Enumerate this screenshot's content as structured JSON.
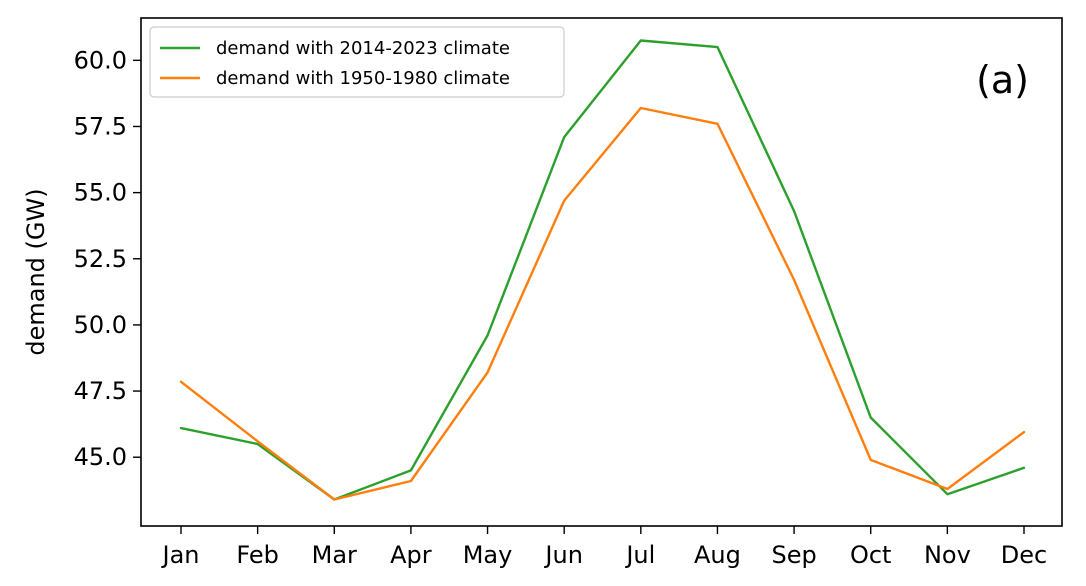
{
  "chart_data": {
    "type": "line",
    "ylabel": "demand (GW)",
    "panel_label": "(a)",
    "categories": [
      "Jan",
      "Feb",
      "Mar",
      "Apr",
      "May",
      "Jun",
      "Jul",
      "Aug",
      "Sep",
      "Oct",
      "Nov",
      "Dec"
    ],
    "yticks": [
      "45.0",
      "47.5",
      "50.0",
      "52.5",
      "55.0",
      "57.5",
      "60.0"
    ],
    "ylim": [
      42.4,
      61.6
    ],
    "grid": false,
    "legend_position": "top-left",
    "series": [
      {
        "name": "demand with 2014-2023 climate",
        "color": "#2ca02c",
        "values": [
          46.1,
          45.5,
          43.4,
          44.5,
          49.6,
          57.1,
          60.75,
          60.5,
          54.3,
          46.5,
          43.6,
          44.6
        ]
      },
      {
        "name": "demand with 1950-1980 climate",
        "color": "#ff7f0e",
        "values": [
          47.85,
          45.6,
          43.4,
          44.1,
          48.2,
          54.7,
          58.2,
          57.6,
          51.7,
          44.9,
          43.8,
          45.95
        ]
      }
    ]
  }
}
